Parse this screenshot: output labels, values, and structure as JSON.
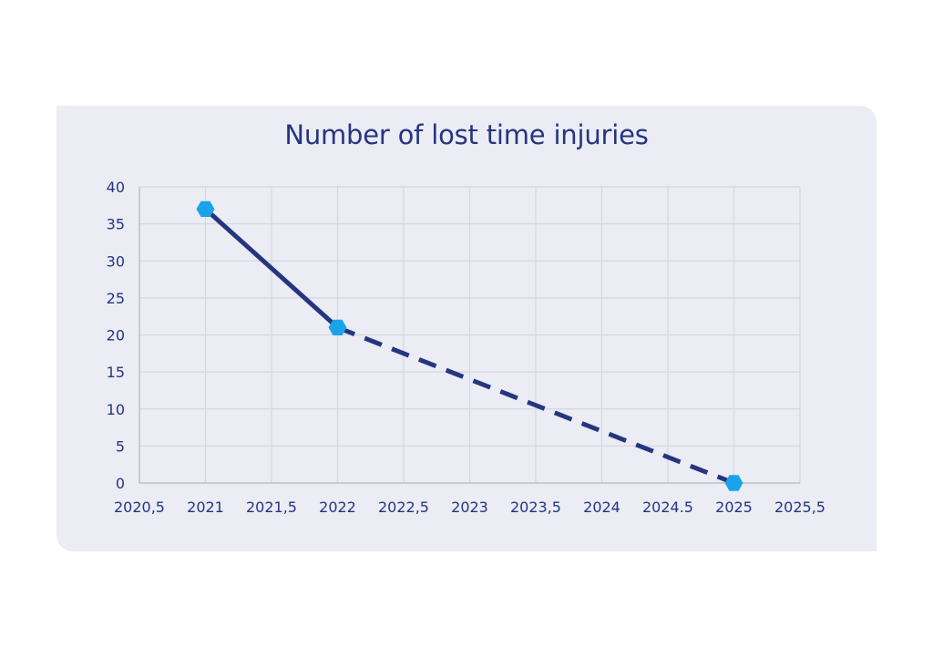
{
  "chart_data": {
    "type": "scatter",
    "title": "Number of lost time injuries",
    "xlabel": "",
    "ylabel": "",
    "xlim": [
      2020.5,
      2025.5
    ],
    "ylim": [
      0,
      40
    ],
    "x_ticks": [
      "2020,5",
      "2021",
      "2021,5",
      "2022",
      "2022,5",
      "2023",
      "2023,5",
      "2024",
      "2024.5",
      "2025",
      "2025,5"
    ],
    "y_ticks": [
      "0",
      "5",
      "10",
      "15",
      "20",
      "25",
      "30",
      "35",
      "40"
    ],
    "grid": true,
    "series": [
      {
        "points": [
          {
            "x": 2021,
            "y": 37
          },
          {
            "x": 2022,
            "y": 21
          },
          {
            "x": 2025,
            "y": 0
          }
        ],
        "segments": [
          {
            "from": 0,
            "to": 1,
            "style": "solid"
          },
          {
            "from": 1,
            "to": 2,
            "style": "dashed"
          }
        ],
        "line_color": "#253580",
        "marker_color": "#1aa3e8",
        "marker": "hexagon"
      }
    ]
  }
}
